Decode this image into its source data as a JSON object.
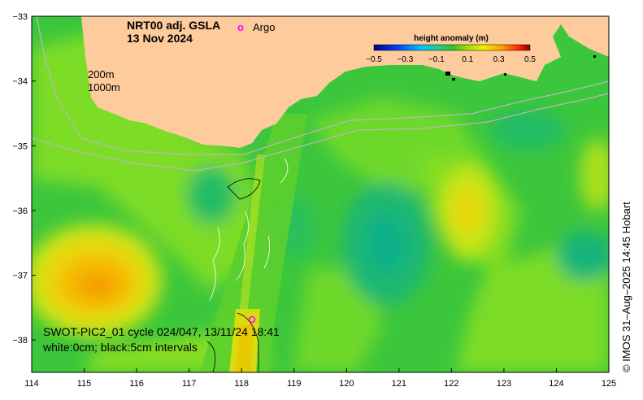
{
  "title": {
    "line1": "NRT00 adj. GSLA",
    "line2": "13 Nov 2024"
  },
  "argo_legend": {
    "symbol": "o",
    "label": "Argo",
    "color": "#ff00ff"
  },
  "colorbar": {
    "title": "height anomaly (m)",
    "ticks": [
      "−0.5",
      "−0.3",
      "−0.1",
      "0.1",
      "0.3",
      "0.5"
    ],
    "range": [
      -0.5,
      0.5
    ]
  },
  "isobaths": {
    "line1": "200m",
    "line2": "1000m"
  },
  "swot": {
    "line1": "SWOT-PIC2_01 cycle 024/047, 13/11/24 18:41",
    "line2": "white:0cm; black:5cm intervals"
  },
  "credit": "© IMOS 31–Aug–2025 14:45 Hobart",
  "axes": {
    "x_ticks": [
      "114",
      "115",
      "116",
      "117",
      "118",
      "119",
      "120",
      "121",
      "122",
      "123",
      "124",
      "125"
    ],
    "y_ticks": [
      "−33",
      "−34",
      "−35",
      "−36",
      "−37",
      "−38"
    ],
    "lon_range": [
      114,
      125
    ],
    "lat_range": [
      -38.5,
      -33
    ]
  },
  "colors": {
    "land": "#fdcb9c",
    "sea_base": "#3cc63c",
    "contour_white": "#ffffff",
    "contour_black": "#000000",
    "isobath": "#b8b8b8"
  }
}
